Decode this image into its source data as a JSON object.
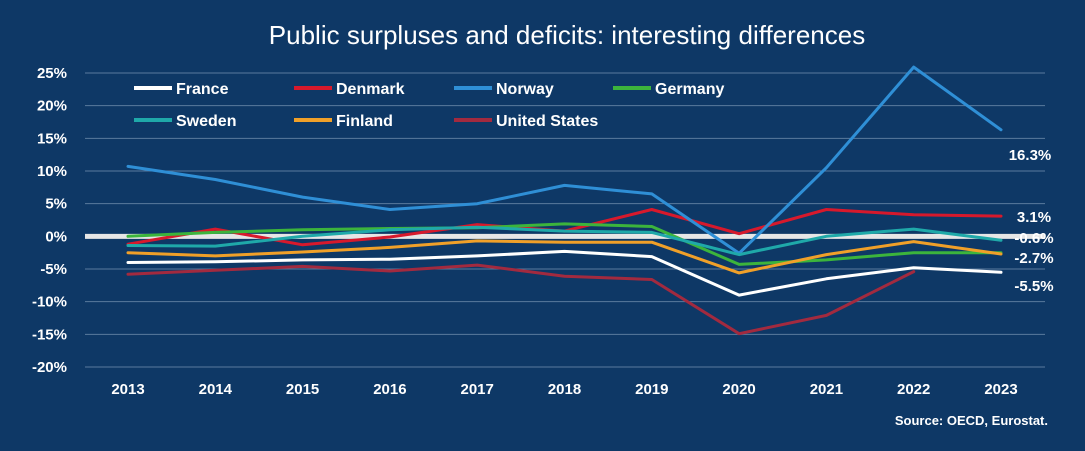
{
  "chart_data": {
    "type": "line",
    "title": "Public surpluses and deficits: interesting differences",
    "source": "Source: OECD, Eurostat.",
    "x": [
      "2013",
      "2014",
      "2015",
      "2016",
      "2017",
      "2018",
      "2019",
      "2020",
      "2021",
      "2022",
      "2023"
    ],
    "ylim": [
      -20,
      25
    ],
    "yticks": [
      25,
      20,
      15,
      10,
      5,
      0,
      -5,
      -10,
      -15,
      -20
    ],
    "ytick_labels": [
      "25%",
      "20%",
      "15%",
      "10%",
      "5%",
      "0%",
      "-5%",
      "-10%",
      "-15%",
      "-20%"
    ],
    "grid": true,
    "legend_position": "top-left",
    "series": [
      {
        "name": "France",
        "color": "#ffffff",
        "values": [
          -4.0,
          -3.9,
          -3.6,
          -3.5,
          -3.0,
          -2.3,
          -3.1,
          -9.0,
          -6.5,
          -4.8,
          -5.5
        ],
        "end_label": "-5.5%"
      },
      {
        "name": "Denmark",
        "color": "#d7192c",
        "values": [
          -1.2,
          1.1,
          -1.3,
          -0.1,
          1.8,
          0.8,
          4.1,
          0.4,
          4.1,
          3.3,
          3.1
        ],
        "end_label": "3.1%"
      },
      {
        "name": "Norway",
        "color": "#2f8fd6",
        "values": [
          10.7,
          8.7,
          6.0,
          4.1,
          5.0,
          7.8,
          6.5,
          -2.6,
          10.5,
          25.9,
          16.3
        ],
        "end_label": "16.3%"
      },
      {
        "name": "Germany",
        "color": "#3cb43c",
        "values": [
          0.0,
          0.6,
          1.0,
          1.2,
          1.3,
          1.9,
          1.5,
          -4.3,
          -3.6,
          -2.5,
          -2.5
        ],
        "end_label": ""
      },
      {
        "name": "Sweden",
        "color": "#1fa9a9",
        "values": [
          -1.4,
          -1.5,
          0.0,
          1.0,
          1.4,
          0.8,
          0.6,
          -2.8,
          0.0,
          1.1,
          -0.6
        ],
        "end_label": "-0.6%"
      },
      {
        "name": "Finland",
        "color": "#f0a029",
        "values": [
          -2.5,
          -3.0,
          -2.4,
          -1.7,
          -0.7,
          -0.9,
          -0.9,
          -5.6,
          -2.8,
          -0.8,
          -2.7
        ],
        "end_label": "-2.7%"
      },
      {
        "name": "United States",
        "color": "#a22a3f",
        "values": [
          -5.8,
          -5.2,
          -4.6,
          -5.3,
          -4.4,
          -6.1,
          -6.6,
          -14.9,
          -12.1,
          -5.4,
          null
        ],
        "end_label": ""
      }
    ]
  }
}
